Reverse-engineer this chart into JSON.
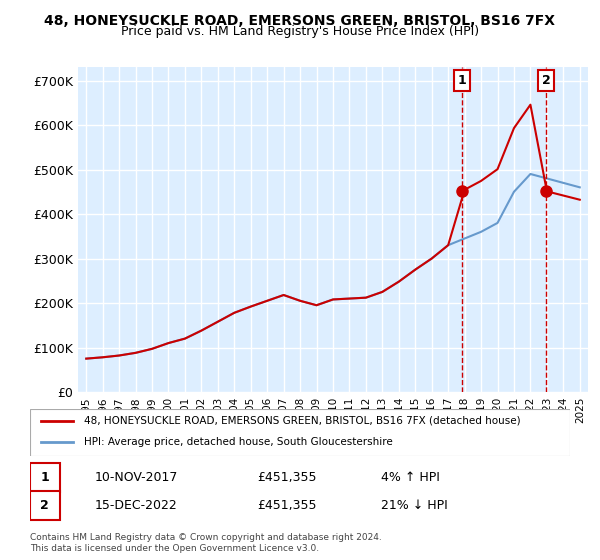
{
  "title": "48, HONEYSUCKLE ROAD, EMERSONS GREEN, BRISTOL, BS16 7FX",
  "subtitle": "Price paid vs. HM Land Registry's House Price Index (HPI)",
  "ylabel_ticks": [
    "£0",
    "£100K",
    "£200K",
    "£300K",
    "£400K",
    "£500K",
    "£600K",
    "£700K"
  ],
  "ylim": [
    0,
    700000
  ],
  "xlim": [
    1994.5,
    2025.5
  ],
  "hpi_years": [
    1995,
    1996,
    1997,
    1998,
    1999,
    2000,
    2001,
    2002,
    2003,
    2004,
    2005,
    2006,
    2007,
    2008,
    2009,
    2010,
    2011,
    2012,
    2013,
    2014,
    2015,
    2016,
    2017,
    2018,
    2019,
    2020,
    2021,
    2022,
    2023,
    2024,
    2025
  ],
  "hpi_values": [
    75000,
    78000,
    82000,
    88000,
    97000,
    110000,
    120000,
    138000,
    158000,
    178000,
    192000,
    205000,
    218000,
    205000,
    195000,
    208000,
    210000,
    212000,
    225000,
    248000,
    275000,
    300000,
    330000,
    345000,
    360000,
    380000,
    450000,
    490000,
    480000,
    470000,
    460000
  ],
  "sale_years": [
    1995.0,
    2017.833,
    2022.958
  ],
  "sale_values": [
    75000,
    451355,
    451355
  ],
  "point1_x": 2017.833,
  "point1_y": 451355,
  "point2_x": 2022.958,
  "point2_y": 451355,
  "point1_label": "1",
  "point2_label": "2",
  "line_color_red": "#cc0000",
  "line_color_blue": "#6699cc",
  "background_color": "#ddeeff",
  "plot_bg": "#ddeeff",
  "grid_color": "#ffffff",
  "legend_label_red": "48, HONEYSUCKLE ROAD, EMERSONS GREEN, BRISTOL, BS16 7FX (detached house)",
  "legend_label_blue": "HPI: Average price, detached house, South Gloucestershire",
  "table_row1_num": "1",
  "table_row1_date": "10-NOV-2017",
  "table_row1_price": "£451,355",
  "table_row1_hpi": "4% ↑ HPI",
  "table_row2_num": "2",
  "table_row2_date": "15-DEC-2022",
  "table_row2_price": "£451,355",
  "table_row2_hpi": "21% ↓ HPI",
  "footer": "Contains HM Land Registry data © Crown copyright and database right 2024.\nThis data is licensed under the Open Government Licence v3.0.",
  "xticks": [
    1995,
    1996,
    1997,
    1998,
    1999,
    2000,
    2001,
    2002,
    2003,
    2004,
    2005,
    2006,
    2007,
    2008,
    2009,
    2010,
    2011,
    2012,
    2013,
    2014,
    2015,
    2016,
    2017,
    2018,
    2019,
    2020,
    2021,
    2022,
    2023,
    2024,
    2025
  ]
}
